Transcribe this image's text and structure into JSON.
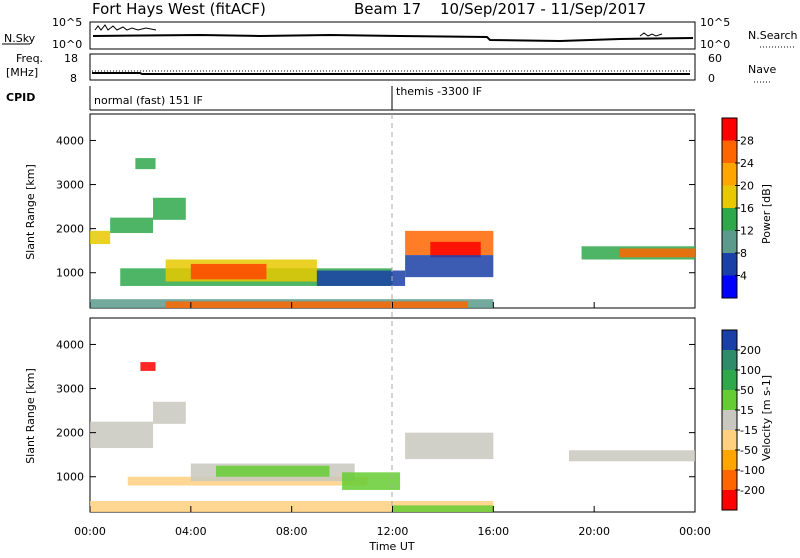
{
  "header": {
    "station": "Fort Hays West (fitACF)",
    "beam": "Beam 17",
    "dates": "10/Sep/2017 - 11/Sep/2017"
  },
  "top_panels": {
    "sky_label": "N.Sky",
    "sky_ticks_left": [
      "10^5",
      "10^0"
    ],
    "sky_ticks_right": [
      "10^5",
      "10^0"
    ],
    "search_label": "N.Search",
    "freq_label_1": "Freq.",
    "freq_label_2": "[MHz]",
    "freq_ticks": [
      "18",
      "8"
    ],
    "nave_ticks": [
      "60",
      "0"
    ],
    "nave_label": "Nave",
    "cpid_label": "CPID",
    "cpid_1": "normal (fast) 151 IF",
    "cpid_2": "themis -3300 IF"
  },
  "x_axis": {
    "label": "Time UT",
    "ticks": [
      "00:00",
      "04:00",
      "08:00",
      "12:00",
      "16:00",
      "20:00",
      "00:00"
    ]
  },
  "chart_data": [
    {
      "type": "heatmap",
      "name": "power",
      "ylabel": "Slant Range [km]",
      "yticks": [
        1000,
        2000,
        3000,
        4000
      ],
      "ylim": [
        200,
        4600
      ],
      "xlim_hours": [
        0,
        24
      ],
      "colorbar_label": "Power [dB]",
      "colorbar_ticks": [
        "28",
        "24",
        "20",
        "16",
        "12",
        "8",
        "4"
      ],
      "colorbar_colors": [
        "#ff0000",
        "#ff6600",
        "#ffa500",
        "#e8c800",
        "#2ea84a",
        "#5c9a8c",
        "#1a3fa6",
        "#0000ff"
      ],
      "regions": [
        {
          "t0": 0.0,
          "t1": 0.8,
          "r0": 1650,
          "r1": 1950,
          "color": "#e8c800"
        },
        {
          "t0": 0.8,
          "t1": 2.5,
          "r0": 1900,
          "r1": 2250,
          "color": "#2ea84a"
        },
        {
          "t0": 2.5,
          "t1": 3.8,
          "r0": 2200,
          "r1": 2700,
          "color": "#2ea84a"
        },
        {
          "t0": 1.8,
          "t1": 2.6,
          "r0": 3350,
          "r1": 3600,
          "color": "#2ea84a"
        },
        {
          "t0": 1.2,
          "t1": 12.0,
          "r0": 700,
          "r1": 1100,
          "color": "#2ea84a"
        },
        {
          "t0": 3.0,
          "t1": 9.0,
          "r0": 800,
          "r1": 1300,
          "color": "#e8c800"
        },
        {
          "t0": 4.0,
          "t1": 7.0,
          "r0": 850,
          "r1": 1200,
          "color": "#ff4400"
        },
        {
          "t0": 9.0,
          "t1": 12.5,
          "r0": 700,
          "r1": 1050,
          "color": "#1a3fa6"
        },
        {
          "t0": 12.5,
          "t1": 16.0,
          "r0": 1400,
          "r1": 1950,
          "color": "#ff6600"
        },
        {
          "t0": 13.5,
          "t1": 15.5,
          "r0": 1350,
          "r1": 1700,
          "color": "#ff0000"
        },
        {
          "t0": 12.5,
          "t1": 16.0,
          "r0": 900,
          "r1": 1400,
          "color": "#1a3fa6"
        },
        {
          "t0": 19.5,
          "t1": 24.0,
          "r0": 1300,
          "r1": 1600,
          "color": "#2ea84a"
        },
        {
          "t0": 21.0,
          "t1": 24.0,
          "r0": 1350,
          "r1": 1550,
          "color": "#ff6600"
        },
        {
          "t0": 0.0,
          "t1": 16.0,
          "r0": 200,
          "r1": 400,
          "color": "#5c9a8c"
        },
        {
          "t0": 3.0,
          "t1": 15.0,
          "r0": 200,
          "r1": 350,
          "color": "#ff6600"
        }
      ]
    },
    {
      "type": "heatmap",
      "name": "velocity",
      "ylabel": "Slant Range [km]",
      "yticks": [
        1000,
        2000,
        3000,
        4000
      ],
      "ylim": [
        200,
        4600
      ],
      "xlim_hours": [
        0,
        24
      ],
      "colorbar_label": "Velocity [m s-1]",
      "colorbar_ticks": [
        "200",
        "100",
        "50",
        "15",
        "-15",
        "-50",
        "-100",
        "-200"
      ],
      "colorbar_colors": [
        "#1a3fa6",
        "#2e8c6a",
        "#2ea84a",
        "#66cc33",
        "#c8c8c0",
        "#ffd080",
        "#ffa500",
        "#ff6600",
        "#ff0000"
      ],
      "regions": [
        {
          "t0": 0.0,
          "t1": 2.5,
          "r0": 1650,
          "r1": 2250,
          "color": "#c8c8c0"
        },
        {
          "t0": 2.5,
          "t1": 3.8,
          "r0": 2200,
          "r1": 2700,
          "color": "#c8c8c0"
        },
        {
          "t0": 2.0,
          "t1": 2.6,
          "r0": 3400,
          "r1": 3600,
          "color": "#ff0000"
        },
        {
          "t0": 1.5,
          "t1": 11.0,
          "r0": 800,
          "r1": 1000,
          "color": "#ffd080"
        },
        {
          "t0": 4.0,
          "t1": 10.5,
          "r0": 900,
          "r1": 1300,
          "color": "#c8c8c0"
        },
        {
          "t0": 5.0,
          "t1": 9.5,
          "r0": 1000,
          "r1": 1250,
          "color": "#66cc33"
        },
        {
          "t0": 10.0,
          "t1": 12.3,
          "r0": 700,
          "r1": 1100,
          "color": "#66cc33"
        },
        {
          "t0": 12.5,
          "t1": 16.0,
          "r0": 1400,
          "r1": 2000,
          "color": "#c8c8c0"
        },
        {
          "t0": 19.0,
          "t1": 24.0,
          "r0": 1350,
          "r1": 1600,
          "color": "#c8c8c0"
        },
        {
          "t0": 0.0,
          "t1": 16.0,
          "r0": 200,
          "r1": 450,
          "color": "#ffd080"
        },
        {
          "t0": 12.0,
          "t1": 16.0,
          "r0": 200,
          "r1": 350,
          "color": "#66cc33"
        }
      ]
    }
  ]
}
